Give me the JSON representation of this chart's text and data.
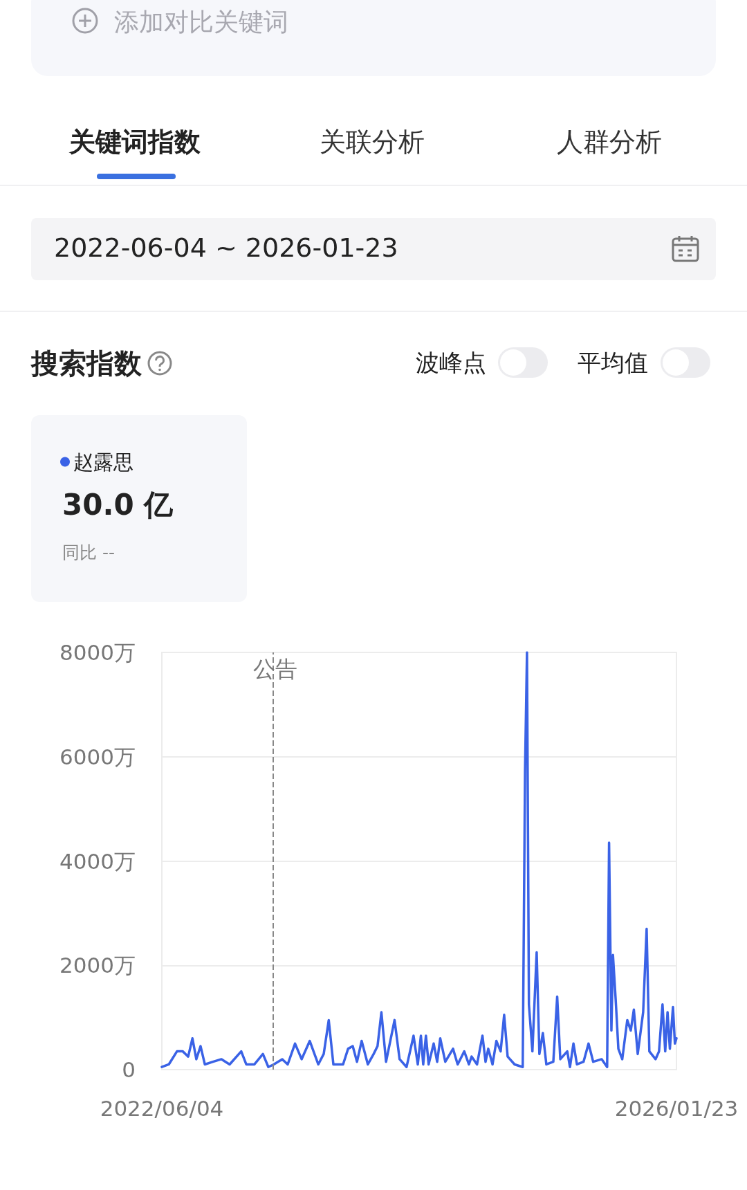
{
  "chart_data": {
    "type": "line",
    "title": "搜索指数",
    "annotations": [
      "添加对比关键词",
      "关键词指数",
      "关联分析",
      "人群分析",
      "2022-06-04 ~ 2026-01-23",
      "波峰点",
      "平均值",
      "30.0 亿",
      "同比 --"
    ],
    "x": [
      "2022-06-04",
      "2022-06-22",
      "2022-07-13",
      "2022-07-28",
      "2022-08-11",
      "2022-08-22",
      "2022-09-01",
      "2022-09-12",
      "2022-09-23",
      "2022-10-14",
      "2022-11-05",
      "2022-11-26",
      "2022-12-26",
      "2023-01-08",
      "2023-01-29",
      "2023-02-20",
      "2023-03-06",
      "2023-03-20",
      "2023-04-11",
      "2023-04-25",
      "2023-05-14",
      "2023-05-31",
      "2023-06-21",
      "2023-07-13",
      "2023-07-27",
      "2023-08-09",
      "2023-08-21",
      "2023-09-15",
      "2023-09-28",
      "2023-10-10",
      "2023-10-21",
      "2023-11-02",
      "2023-11-18",
      "2023-12-03",
      "2023-12-13",
      "2023-12-23",
      "2024-01-04",
      "2024-01-26",
      "2024-02-08",
      "2024-02-26",
      "2024-03-15",
      "2024-03-26",
      "2024-04-03",
      "2024-04-09",
      "2024-04-16",
      "2024-04-23",
      "2024-05-06",
      "2024-05-15",
      "2024-05-23",
      "2024-06-05",
      "2024-06-25",
      "2024-07-07",
      "2024-07-24",
      "2024-08-05",
      "2024-08-12",
      "2024-08-26",
      "2024-09-09",
      "2024-09-17",
      "2024-09-24",
      "2024-10-05",
      "2024-10-15",
      "2024-10-26",
      "2024-11-04",
      "2024-11-13",
      "2024-12-01",
      "2024-12-22",
      "2024-12-28",
      "2025-01-02",
      "2025-01-07",
      "2025-01-16",
      "2025-01-27",
      "2025-02-03",
      "2025-02-12",
      "2025-02-21",
      "2025-03-11",
      "2025-03-21",
      "2025-03-29",
      "2025-04-16",
      "2025-04-23",
      "2025-05-02",
      "2025-05-11",
      "2025-05-28",
      "2025-06-10",
      "2025-06-22",
      "2025-07-14",
      "2025-07-28",
      "2025-08-02",
      "2025-08-08",
      "2025-08-12",
      "2025-08-19",
      "2025-08-26",
      "2025-09-05",
      "2025-09-18",
      "2025-09-27",
      "2025-10-05",
      "2025-10-15",
      "2025-10-29",
      "2025-11-07",
      "2025-11-14",
      "2025-11-30",
      "2025-12-09",
      "2025-12-18",
      "2025-12-25",
      "2025-12-31",
      "2026-01-06",
      "2026-01-14",
      "2026-01-19",
      "2026-01-23"
    ],
    "series": [
      {
        "name": "赵露思",
        "color": "#3a62e6",
        "values": [
          50,
          100,
          350,
          350,
          250,
          600,
          200,
          450,
          100,
          150,
          200,
          100,
          350,
          100,
          100,
          300,
          50,
          100,
          200,
          100,
          500,
          200,
          550,
          100,
          300,
          950,
          100,
          100,
          400,
          450,
          150,
          550,
          100,
          300,
          450,
          1100,
          150,
          950,
          200,
          50,
          650,
          100,
          650,
          100,
          650,
          100,
          500,
          150,
          600,
          150,
          400,
          100,
          350,
          100,
          250,
          100,
          650,
          150,
          400,
          100,
          550,
          350,
          1050,
          250,
          100,
          50,
          5750,
          8000,
          1250,
          350,
          2250,
          300,
          700,
          100,
          150,
          1400,
          200,
          350,
          50,
          500,
          100,
          150,
          500,
          150,
          200,
          50,
          4350,
          750,
          2200,
          1350,
          400,
          200,
          950,
          750,
          1150,
          300,
          1100,
          2700,
          350,
          200,
          350,
          1250,
          350,
          1100,
          400,
          1200,
          500,
          600
        ]
      }
    ],
    "xlim": [
      "2022-06-04",
      "2026-01-23"
    ],
    "xticks": [
      {
        "value": "2022-06-04",
        "label": "2022/06/04"
      },
      {
        "value": "2026-01-23",
        "label": "2026/01/23"
      }
    ],
    "ylim": [
      0,
      8000
    ],
    "yticks": [
      0,
      {
        "value": 2000,
        "label": "2000万"
      },
      {
        "value": 4000,
        "label": "4000万"
      },
      {
        "value": 6000,
        "label": "6000万"
      },
      {
        "value": 8000,
        "label": "8000万"
      }
    ],
    "ref_lines": [
      {
        "axis": "x",
        "value": "2023-03-19",
        "label": "公告",
        "color": "#888888",
        "line_style": "dashed"
      }
    ],
    "grid": "y",
    "legend": "top left",
    "marker": "none",
    "line_style": "solid"
  }
}
